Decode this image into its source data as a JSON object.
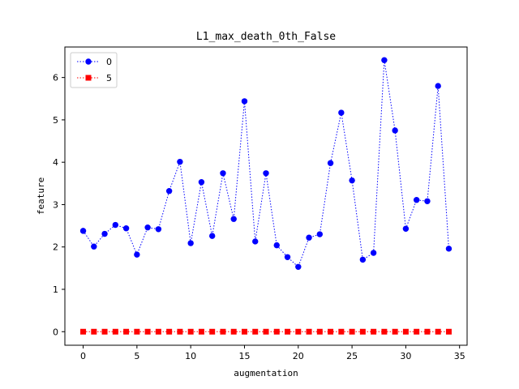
{
  "chart_data": {
    "type": "line",
    "title": "L1_max_death_0th_False",
    "xlabel": "augmentation",
    "ylabel": "feature",
    "xlim": [
      -1.7,
      35.7
    ],
    "ylim": [
      -0.32,
      6.72
    ],
    "xticks": [
      0,
      5,
      10,
      15,
      20,
      25,
      30,
      35
    ],
    "yticks": [
      0,
      1,
      2,
      3,
      4,
      5,
      6
    ],
    "grid": false,
    "legend_position": "top-left",
    "x": [
      0,
      1,
      2,
      3,
      4,
      5,
      6,
      7,
      8,
      9,
      10,
      11,
      12,
      13,
      14,
      15,
      16,
      17,
      18,
      19,
      20,
      21,
      22,
      23,
      24,
      25,
      26,
      27,
      28,
      29,
      30,
      31,
      32,
      33,
      34
    ],
    "series": [
      {
        "name": "0",
        "color": "#0000ff",
        "marker": "circle",
        "linestyle": "dotted",
        "values": [
          2.38,
          2.01,
          2.31,
          2.52,
          2.44,
          1.82,
          2.46,
          2.42,
          3.32,
          4.01,
          2.09,
          3.53,
          2.26,
          3.74,
          2.66,
          5.44,
          2.13,
          3.74,
          2.04,
          1.76,
          1.53,
          2.22,
          2.3,
          3.98,
          5.17,
          3.57,
          1.7,
          1.86,
          6.41,
          4.75,
          2.43,
          3.11,
          3.08,
          5.8,
          1.96
        ]
      },
      {
        "name": "5",
        "color": "#ff0000",
        "marker": "square",
        "linestyle": "dotted",
        "values": [
          0,
          0,
          0,
          0,
          0,
          0,
          0,
          0,
          0,
          0,
          0,
          0,
          0,
          0,
          0,
          0,
          0,
          0,
          0,
          0,
          0,
          0,
          0,
          0,
          0,
          0,
          0,
          0,
          0,
          0,
          0,
          0,
          0,
          0,
          0
        ]
      }
    ]
  }
}
